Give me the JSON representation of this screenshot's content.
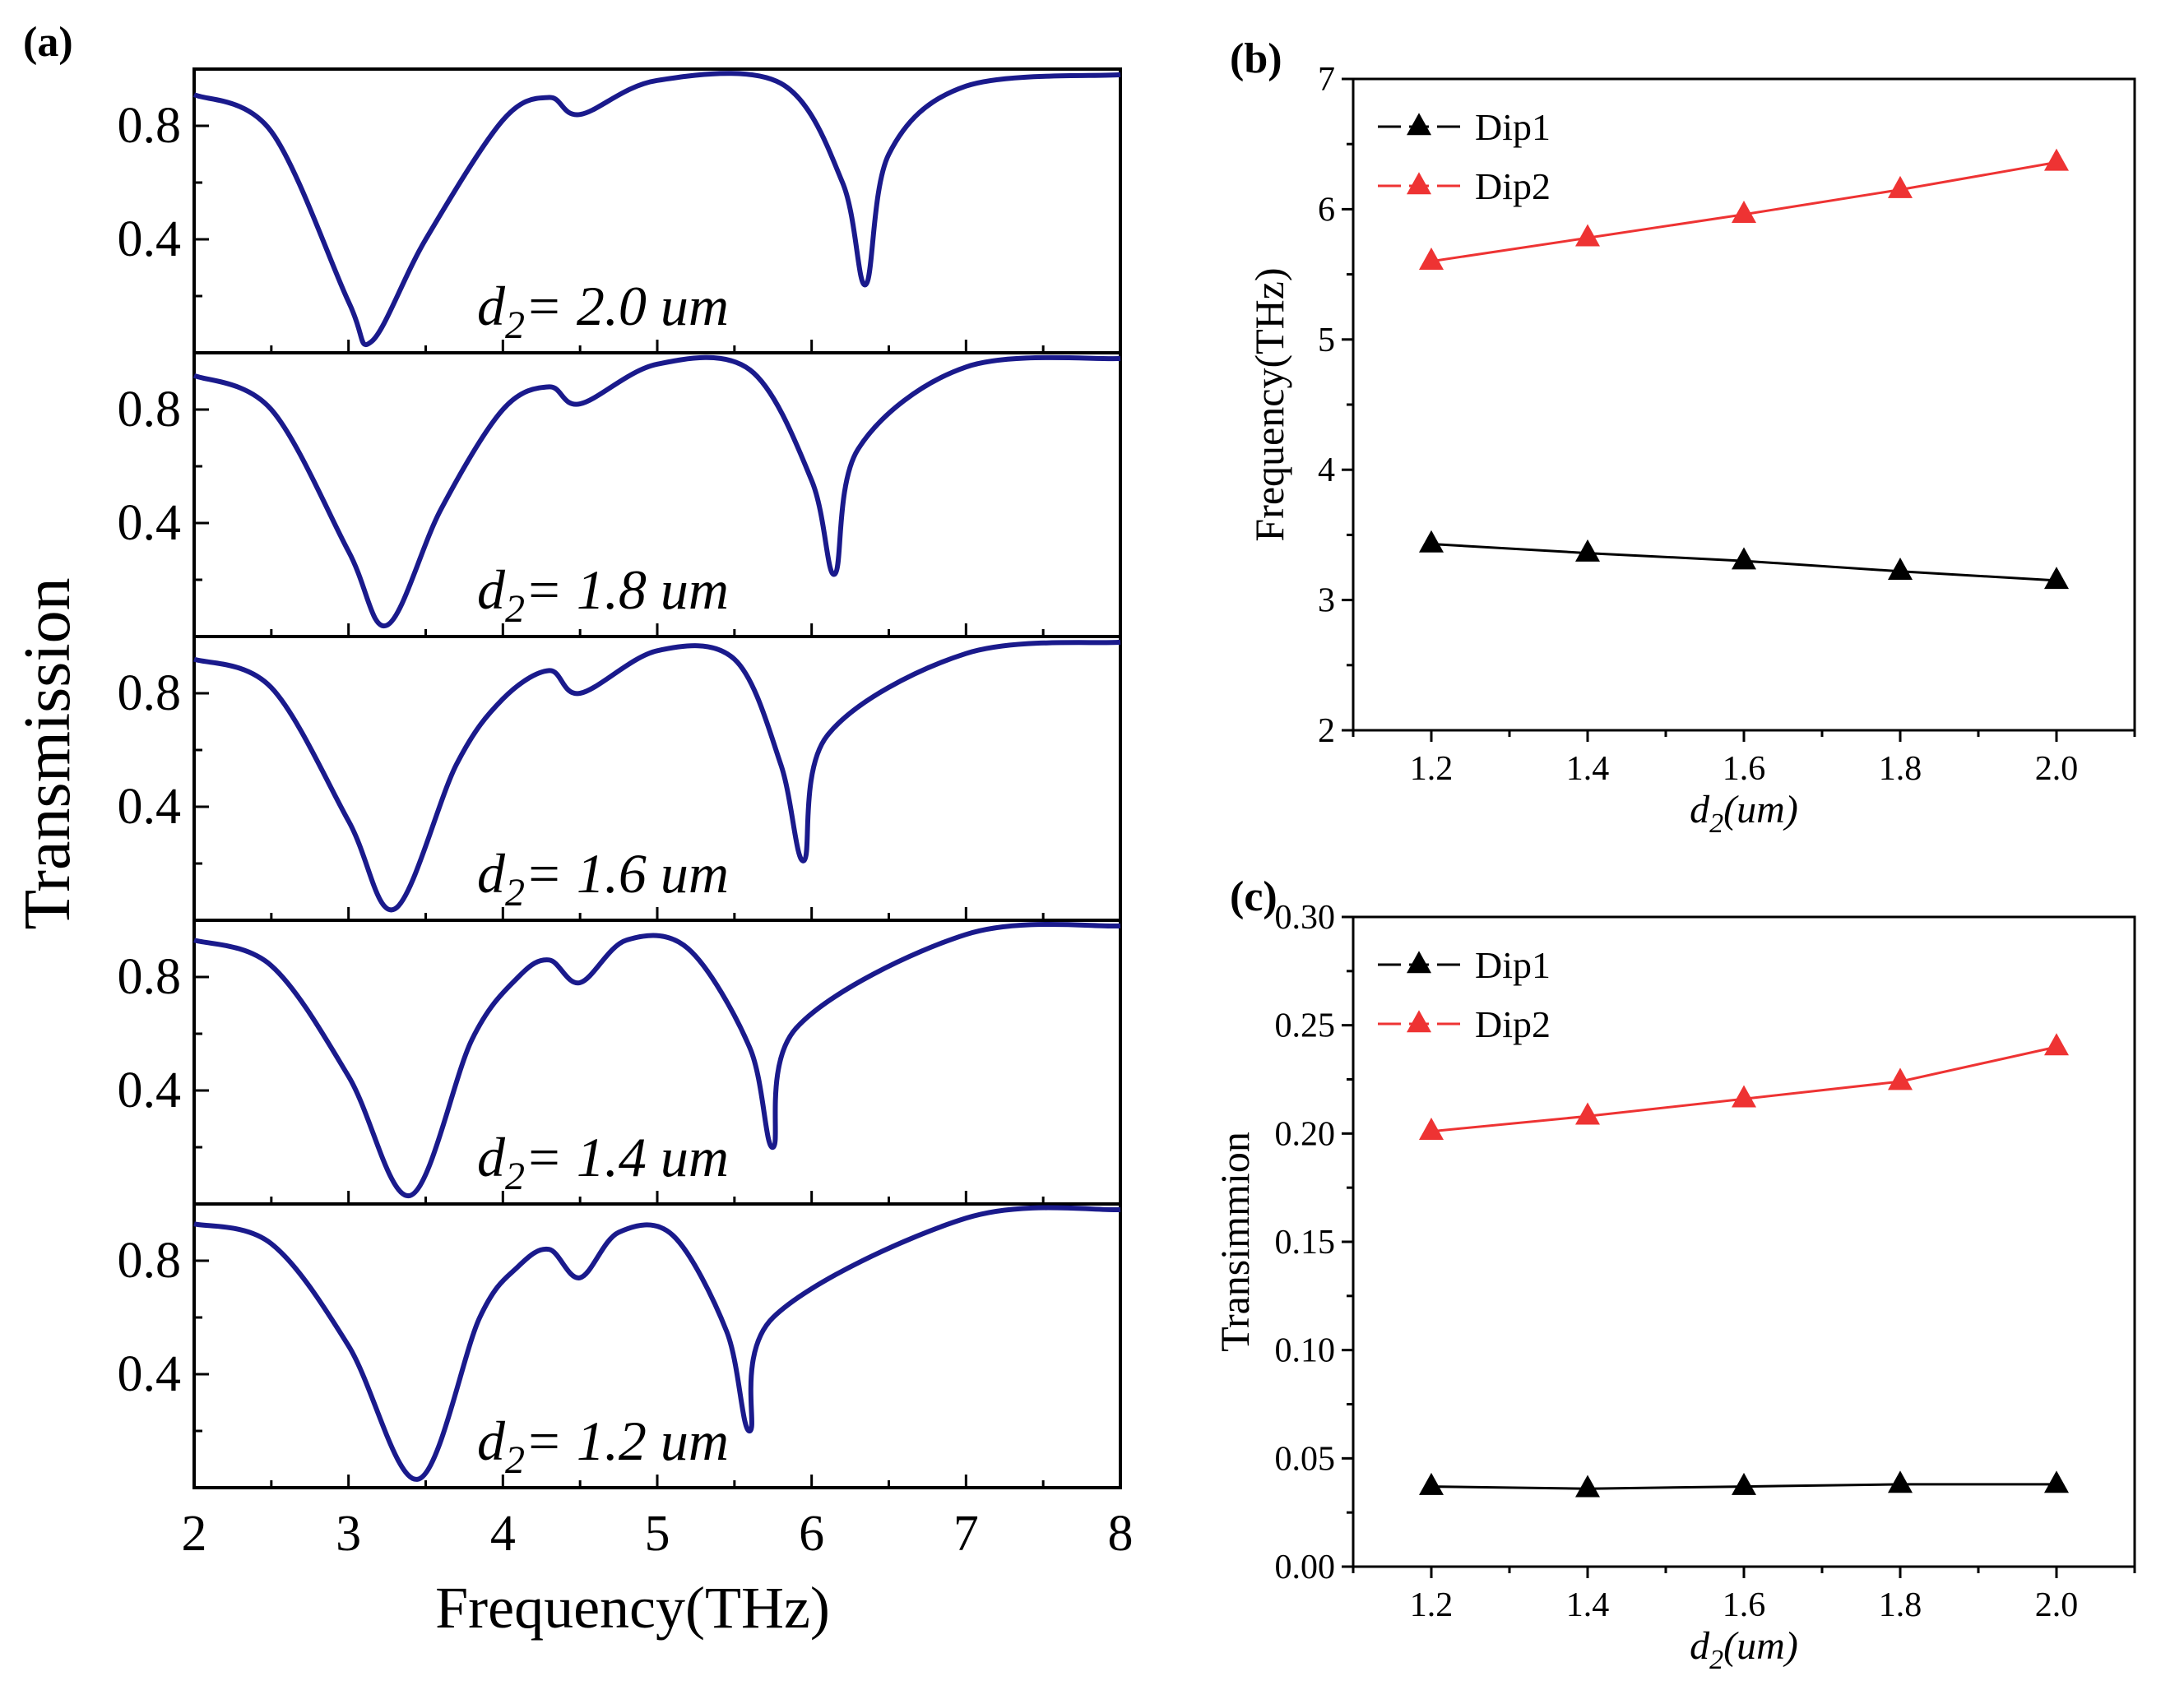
{
  "colors": {
    "spectrum": "#1a1a8c",
    "dip1": "#000000",
    "dip2": "#ee3333",
    "axis": "#000000"
  },
  "chart_data": [
    {
      "id": "a",
      "panel_label": "(a)",
      "type": "line",
      "xlabel": "Frequency(THz)",
      "ylabel": "Transmission",
      "xlim": [
        2,
        8
      ],
      "ylim": [
        0,
        1
      ],
      "xticks": [
        "2",
        "3",
        "4",
        "5",
        "6",
        "7",
        "8"
      ],
      "yticks": [
        "0.8",
        "0.4"
      ],
      "subplots": [
        {
          "label_prefix": "d",
          "label_sub": "2",
          "label_value": "= 2.0 um",
          "dip1_freq": 3.15,
          "dip1_min": 0.04,
          "dip2_freq": 6.35,
          "dip2_min": 0.24,
          "x": [
            2.0,
            2.5,
            3.0,
            3.15,
            3.5,
            4.0,
            4.3,
            4.5,
            5.0,
            5.8,
            6.2,
            6.35,
            6.5,
            7.0,
            8.0
          ],
          "y": [
            0.91,
            0.78,
            0.18,
            0.04,
            0.4,
            0.82,
            0.9,
            0.84,
            0.96,
            0.95,
            0.6,
            0.24,
            0.7,
            0.94,
            0.98
          ]
        },
        {
          "label_prefix": "d",
          "label_sub": "2",
          "label_value": "= 1.8 um",
          "dip1_freq": 3.25,
          "dip1_min": 0.04,
          "dip2_freq": 6.15,
          "dip2_min": 0.22,
          "x": [
            2.0,
            2.5,
            3.0,
            3.25,
            3.6,
            4.0,
            4.3,
            4.5,
            5.0,
            5.6,
            6.0,
            6.15,
            6.3,
            7.0,
            8.0
          ],
          "y": [
            0.92,
            0.8,
            0.3,
            0.04,
            0.45,
            0.8,
            0.88,
            0.82,
            0.96,
            0.94,
            0.55,
            0.22,
            0.66,
            0.95,
            0.98
          ]
        },
        {
          "label_prefix": "d",
          "label_sub": "2",
          "label_value": "= 1.6 um",
          "dip1_freq": 3.3,
          "dip1_min": 0.04,
          "dip2_freq": 5.95,
          "dip2_min": 0.21,
          "x": [
            2.0,
            2.5,
            3.0,
            3.3,
            3.7,
            4.0,
            4.3,
            4.5,
            5.0,
            5.5,
            5.8,
            5.95,
            6.1,
            7.0,
            8.0
          ],
          "y": [
            0.92,
            0.82,
            0.35,
            0.04,
            0.55,
            0.78,
            0.88,
            0.8,
            0.95,
            0.92,
            0.55,
            0.21,
            0.65,
            0.94,
            0.98
          ]
        },
        {
          "label_prefix": "d",
          "label_sub": "2",
          "label_value": "= 1.4 um",
          "dip1_freq": 3.4,
          "dip1_min": 0.03,
          "dip2_freq": 5.75,
          "dip2_min": 0.2,
          "x": [
            2.0,
            2.5,
            3.0,
            3.4,
            3.8,
            4.1,
            4.3,
            4.5,
            4.8,
            5.2,
            5.6,
            5.75,
            5.9,
            7.0,
            8.0
          ],
          "y": [
            0.93,
            0.84,
            0.45,
            0.03,
            0.58,
            0.8,
            0.86,
            0.78,
            0.93,
            0.9,
            0.55,
            0.2,
            0.62,
            0.95,
            0.98
          ]
        },
        {
          "label_prefix": "d",
          "label_sub": "2",
          "label_value": "= 1.2 um",
          "dip1_freq": 3.45,
          "dip1_min": 0.03,
          "dip2_freq": 5.6,
          "dip2_min": 0.2,
          "x": [
            2.0,
            2.5,
            3.0,
            3.45,
            3.85,
            4.1,
            4.3,
            4.5,
            4.75,
            5.1,
            5.45,
            5.6,
            5.75,
            7.0,
            8.0
          ],
          "y": [
            0.93,
            0.86,
            0.5,
            0.03,
            0.6,
            0.78,
            0.84,
            0.74,
            0.9,
            0.89,
            0.55,
            0.2,
            0.6,
            0.95,
            0.98
          ]
        }
      ]
    },
    {
      "id": "b",
      "panel_label": "(b)",
      "type": "line",
      "xlabel_prefix": "d",
      "xlabel_sub": "2",
      "xlabel_rest": "(um)",
      "ylabel": "Frequency(THz)",
      "xlim": [
        1.1,
        2.1
      ],
      "ylim": [
        2,
        7
      ],
      "xticks": [
        "1.2",
        "1.4",
        "1.6",
        "1.8",
        "2.0"
      ],
      "yticks": [
        "2",
        "3",
        "4",
        "5",
        "6",
        "7"
      ],
      "legend_position": "top-left",
      "series": [
        {
          "name": "Dip1",
          "color": "#000000",
          "x": [
            1.2,
            1.4,
            1.6,
            1.8,
            2.0
          ],
          "y": [
            3.43,
            3.36,
            3.3,
            3.22,
            3.15
          ]
        },
        {
          "name": "Dip2",
          "color": "#ee3333",
          "x": [
            1.2,
            1.4,
            1.6,
            1.8,
            2.0
          ],
          "y": [
            5.6,
            5.78,
            5.96,
            6.15,
            6.36
          ]
        }
      ]
    },
    {
      "id": "c",
      "panel_label": "(c)",
      "type": "line",
      "xlabel_prefix": "d",
      "xlabel_sub": "2",
      "xlabel_rest": "(um)",
      "ylabel": "Transimmion",
      "xlim": [
        1.1,
        2.1
      ],
      "ylim": [
        0,
        0.3
      ],
      "xticks": [
        "1.2",
        "1.4",
        "1.6",
        "1.8",
        "2.0"
      ],
      "yticks": [
        "0.00",
        "0.05",
        "0.10",
        "0.15",
        "0.20",
        "0.25",
        "0.30"
      ],
      "legend_position": "top-left",
      "series": [
        {
          "name": "Dip1",
          "color": "#000000",
          "x": [
            1.2,
            1.4,
            1.6,
            1.8,
            2.0
          ],
          "y": [
            0.037,
            0.036,
            0.037,
            0.038,
            0.038
          ]
        },
        {
          "name": "Dip2",
          "color": "#ee3333",
          "x": [
            1.2,
            1.4,
            1.6,
            1.8,
            2.0
          ],
          "y": [
            0.201,
            0.208,
            0.216,
            0.224,
            0.24
          ]
        }
      ]
    }
  ]
}
